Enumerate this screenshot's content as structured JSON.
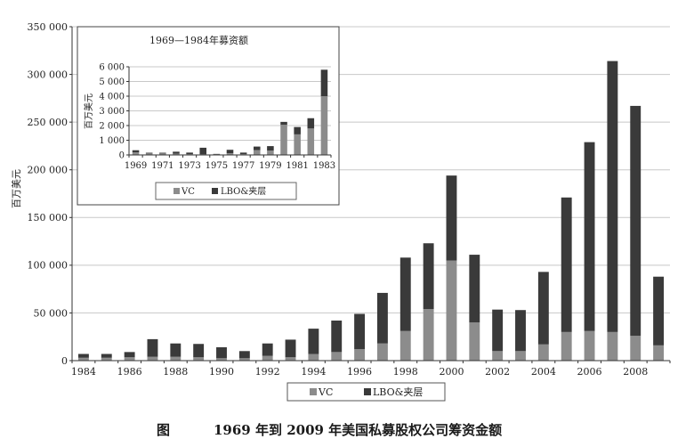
{
  "main_chart": {
    "type": "bar",
    "stacked": true,
    "ylabel": "百万美元",
    "yticks": [
      "0",
      "50 000",
      "100 000",
      "150 000",
      "200 000",
      "250 000",
      "300 000",
      "350 000"
    ],
    "ylim": [
      0,
      350000
    ],
    "categories": [
      "1984",
      "1985",
      "1986",
      "1987",
      "1988",
      "1989",
      "1990",
      "1991",
      "1992",
      "1993",
      "1994",
      "1995",
      "1996",
      "1997",
      "1998",
      "1999",
      "2000",
      "2001",
      "2002",
      "2003",
      "2004",
      "2005",
      "2006",
      "2007",
      "2008",
      "2009"
    ],
    "xtick_labels": [
      "1984",
      "1986",
      "1988",
      "1990",
      "1992",
      "1994",
      "1996",
      "1998",
      "2000",
      "2002",
      "2004",
      "2006",
      "2008"
    ],
    "series": [
      {
        "name": "VC",
        "color": "#8c8c8c",
        "values": [
          3000,
          3000,
          3500,
          4000,
          4000,
          3500,
          2500,
          2500,
          5000,
          3500,
          7000,
          9000,
          12000,
          18000,
          31000,
          54000,
          105000,
          40000,
          10000,
          10000,
          17000,
          30000,
          31000,
          30000,
          26000,
          16000
        ]
      },
      {
        "name": "LBO&夹层",
        "color": "#3a3a3a",
        "values": [
          4000,
          4000,
          5500,
          18500,
          14000,
          14000,
          11500,
          7500,
          13000,
          18500,
          26500,
          33000,
          37000,
          53000,
          77000,
          69000,
          89000,
          71000,
          43500,
          43000,
          76000,
          141000,
          198000,
          284000,
          241000,
          72000
        ]
      }
    ],
    "legend": [
      "VC",
      "LBO&夹层"
    ],
    "legend_position": "bottom",
    "grid": true
  },
  "inset_chart": {
    "type": "bar",
    "stacked": true,
    "title": "1969—1984年募资额",
    "ylabel": "百万美元",
    "yticks": [
      "0",
      "1 000",
      "2 000",
      "3 000",
      "4 000",
      "5 000",
      "6 000"
    ],
    "ylim": [
      0,
      6000
    ],
    "categories": [
      "1969",
      "1970",
      "1971",
      "1972",
      "1973",
      "1974",
      "1975",
      "1976",
      "1977",
      "1978",
      "1979",
      "1980",
      "1981",
      "1982",
      "1983"
    ],
    "xtick_labels": [
      "1969",
      "1971",
      "1973",
      "1975",
      "1977",
      "1979",
      "1981",
      "1983"
    ],
    "series": [
      {
        "name": "VC",
        "color": "#8c8c8c",
        "values": [
          170,
          100,
          100,
          90,
          60,
          40,
          40,
          120,
          60,
          330,
          300,
          2050,
          1400,
          1800,
          4000
        ]
      },
      {
        "name": "LBO&夹层",
        "color": "#3a3a3a",
        "values": [
          150,
          50,
          50,
          130,
          100,
          450,
          30,
          230,
          100,
          240,
          300,
          200,
          500,
          700,
          1800
        ]
      }
    ],
    "legend": [
      "VC",
      "LBO&夹层"
    ],
    "legend_position": "bottom",
    "grid": true
  },
  "caption": {
    "label": "图",
    "title": "1969 年到 2009 年美国私募股权公司筹资金额"
  }
}
